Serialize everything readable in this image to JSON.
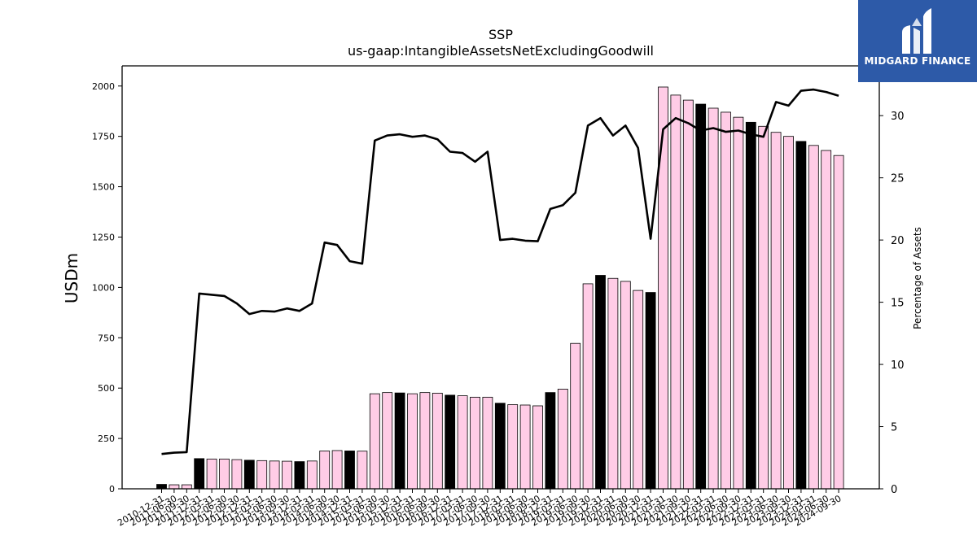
{
  "brand": {
    "name": "MIDGARD FINANCE",
    "color": "#2d5aa8"
  },
  "chart_data": {
    "type": "bar",
    "title": "SSP",
    "subtitle": "us-gaap:IntangibleAssetsNetExcludingGoodwill",
    "ylabel": "USDm",
    "ylabel_right": "Percentage of Assets",
    "ylim": [
      0,
      2100
    ],
    "ylim_right": [
      0,
      34
    ],
    "yticks": [
      0,
      250,
      500,
      750,
      1000,
      1250,
      1500,
      1750,
      2000
    ],
    "yticks_right": [
      0,
      5,
      10,
      15,
      20,
      25,
      30
    ],
    "colors": {
      "q4_bar": "#000000",
      "other_bar": "#ffcce6",
      "line": "#000000"
    },
    "categories": [
      "2010-12-31",
      "2011-06-30",
      "2011-09-30",
      "2011-12-31",
      "2012-03-31",
      "2012-06-30",
      "2012-09-30",
      "2012-12-31",
      "2013-03-31",
      "2013-06-30",
      "2013-09-30",
      "2013-12-31",
      "2014-03-31",
      "2014-06-30",
      "2014-09-30",
      "2014-12-31",
      "2015-03-31",
      "2015-06-30",
      "2015-09-30",
      "2015-12-31",
      "2016-03-31",
      "2016-06-30",
      "2016-09-30",
      "2016-12-31",
      "2017-03-31",
      "2017-06-30",
      "2017-09-30",
      "2017-12-31",
      "2018-03-31",
      "2018-06-30",
      "2018-09-30",
      "2018-12-31",
      "2019-03-31",
      "2019-06-30",
      "2019-09-30",
      "2019-12-31",
      "2020-03-31",
      "2020-06-30",
      "2020-09-30",
      "2020-12-31",
      "2021-03-31",
      "2021-06-30",
      "2021-09-30",
      "2021-12-31",
      "2022-03-31",
      "2022-06-30",
      "2022-09-30",
      "2022-12-31",
      "2023-03-31",
      "2023-06-30",
      "2023-09-30",
      "2023-12-31",
      "2024-03-31",
      "2024-06-30",
      "2024-09-30"
    ],
    "series": [
      {
        "values": [
          22,
          20,
          20,
          150,
          148,
          148,
          145,
          142,
          140,
          138,
          137,
          135,
          138,
          188,
          190,
          188,
          187,
          472,
          478,
          476,
          472,
          478,
          475,
          465,
          462,
          455,
          455,
          425,
          418,
          416,
          412,
          478,
          495,
          722,
          1018,
          1060,
          1045,
          1030,
          985,
          975,
          1995,
          1955,
          1930,
          1910,
          1890,
          1870,
          1845,
          1820,
          1800,
          1770,
          1750,
          1725,
          1705,
          1680,
          1655
        ]
      },
      {
        "values": [
          2.8,
          2.9,
          2.95,
          15.7,
          15.6,
          15.5,
          14.9,
          14.05,
          14.3,
          14.25,
          14.5,
          14.3,
          14.9,
          19.8,
          19.6,
          18.3,
          18.1,
          28.0,
          28.4,
          28.5,
          28.3,
          28.4,
          28.1,
          27.1,
          27.0,
          26.3,
          27.1,
          20.0,
          20.1,
          19.95,
          19.9,
          22.5,
          22.8,
          23.8,
          29.2,
          29.8,
          28.4,
          29.2,
          27.4,
          20.1,
          28.9,
          29.8,
          29.4,
          28.8,
          29.0,
          28.7,
          28.8,
          28.5,
          28.3,
          31.1,
          30.8,
          32.0,
          32.1,
          31.9,
          31.6
        ]
      }
    ]
  }
}
